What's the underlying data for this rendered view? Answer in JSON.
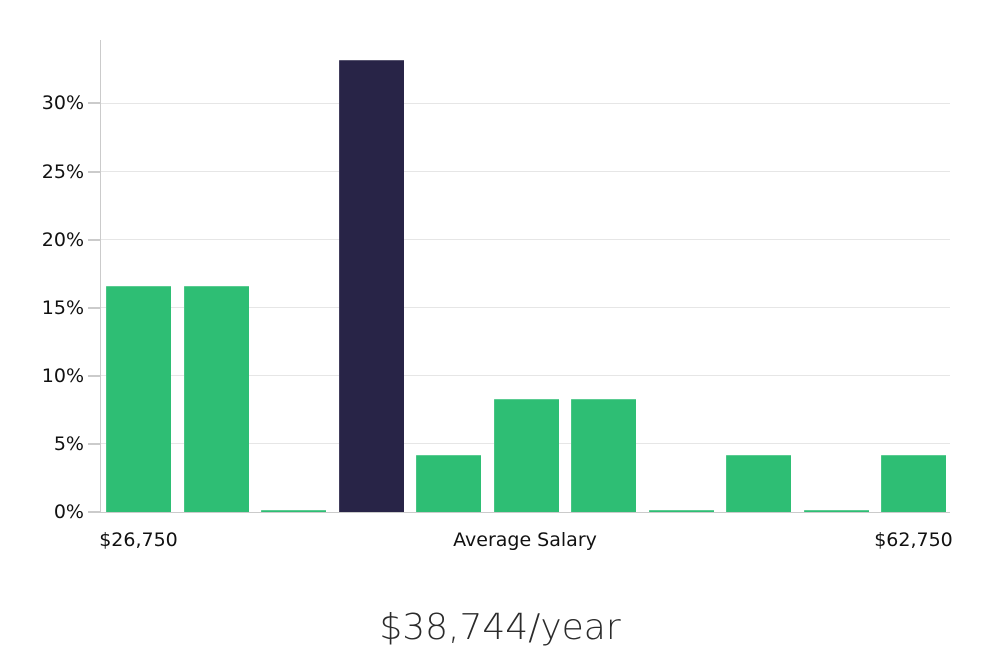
{
  "chart": {
    "title": "$38,744/year",
    "x_tick_left": "$26,750",
    "x_axis_label": "Average Salary",
    "x_tick_right": "$62,750",
    "colors": {
      "background": "#ffffff",
      "bar": "#2ebe74",
      "bar_highlight": "#282447",
      "grid": "#e6e6e6",
      "axis": "#cbcbcb",
      "tick_text": "#111111",
      "title_text": "#2b2b2b"
    }
  },
  "chart_data": {
    "type": "bar",
    "title": "$38,744/year",
    "xlabel": "Average Salary",
    "ylabel": "",
    "y_unit": "%",
    "y_ticks": [
      0,
      5,
      10,
      15,
      20,
      25,
      30
    ],
    "y_tick_labels": [
      "0%",
      "5%",
      "10%",
      "15%",
      "20%",
      "25%",
      "30%"
    ],
    "ylim": [
      0,
      34.6
    ],
    "grid": true,
    "legend": false,
    "x_first_tick_label": "$26,750",
    "x_last_tick_label": "$62,750",
    "n_bars": 11,
    "values": [
      16.6,
      16.6,
      0.1,
      33.2,
      4.2,
      8.3,
      8.3,
      0.1,
      4.2,
      0.1,
      4.2
    ],
    "highlight_index": 3,
    "bar_color": "#2ebe74",
    "highlight_color": "#282447"
  }
}
